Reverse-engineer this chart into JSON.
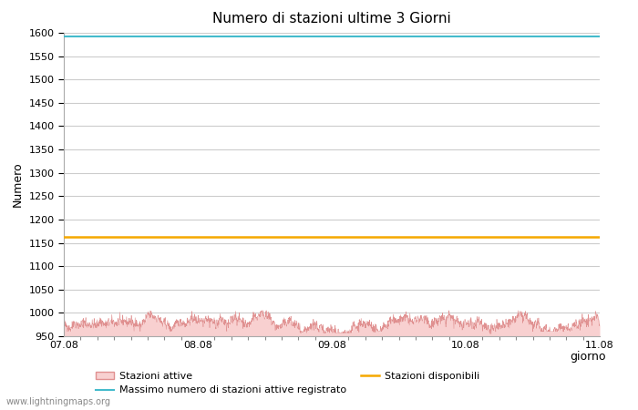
{
  "title": "Numero di stazioni ultime 3 Giorni",
  "xlabel": "giorno",
  "ylabel": "Numero",
  "ylim": [
    950,
    1600
  ],
  "yticks": [
    950,
    1000,
    1050,
    1100,
    1150,
    1200,
    1250,
    1300,
    1350,
    1400,
    1450,
    1500,
    1550,
    1600
  ],
  "x_start": 0.0,
  "x_end": 4.0,
  "xtick_positions": [
    0.0,
    1.0,
    2.0,
    3.0,
    4.0
  ],
  "xtick_labels": [
    "07.08",
    "08.08",
    "09.08",
    "10.08",
    "11.08"
  ],
  "massimo_value": 1592,
  "massimo_color": "#44bbcc",
  "disponibili_value": 1163,
  "disponibili_color": "#f5a800",
  "attive_fill_color": "#f8d0d0",
  "attive_line_color": "#e09090",
  "background_color": "#ffffff",
  "grid_color": "#cccccc",
  "watermark": "www.lightningmaps.org",
  "legend_attive": "Stazioni attive",
  "legend_massimo": "Massimo numero di stazioni attive registrato",
  "legend_disponibili": "Stazioni disponibili",
  "seed": 42
}
